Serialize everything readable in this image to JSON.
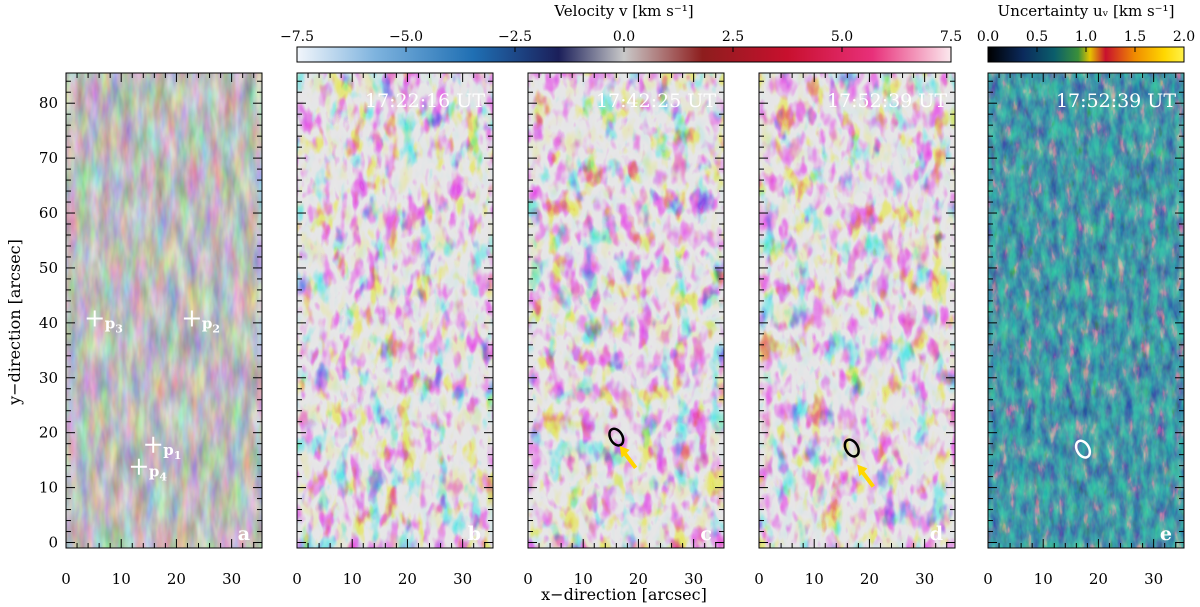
{
  "chart_data": {
    "type": "heatmap",
    "xlabel": "x−direction  [arcsec]",
    "ylabel": "y−direction  [arcsec]",
    "xlim": [
      0,
      35.5
    ],
    "ylim": [
      -1,
      85.5
    ],
    "x_ticks": [
      "0",
      "10",
      "20",
      "30"
    ],
    "x_tick_values": [
      0,
      10,
      20,
      30
    ],
    "y_ticks": [
      "0",
      "10",
      "20",
      "30",
      "40",
      "50",
      "60",
      "70",
      "80"
    ],
    "y_tick_values": [
      0,
      10,
      20,
      30,
      40,
      50,
      60,
      70,
      80
    ],
    "velocity_colorbar": {
      "title": "Velocity  v  [km s⁻¹]",
      "ticks": [
        "−7.5",
        "−5.0",
        "−2.5",
        "0.0",
        "2.5",
        "5.0",
        "7.5"
      ],
      "tick_values": [
        -7.5,
        -5.0,
        -2.5,
        0.0,
        2.5,
        5.0,
        7.5
      ],
      "range": [
        -7.5,
        7.5
      ],
      "colors": [
        "#f2f6fb",
        "#7eb3de",
        "#1f6fb3",
        "#1b1f5a",
        "#c9c9c9",
        "#8d1d1d",
        "#c8102e",
        "#e8307a",
        "#fbe9ee"
      ]
    },
    "uncertainty_colorbar": {
      "title": "Uncertainty  uᵥ  [km s⁻¹]",
      "ticks": [
        "0.0",
        "0.5",
        "1.0",
        "1.5",
        "2.0"
      ],
      "tick_values": [
        0.0,
        0.5,
        1.0,
        1.5,
        2.0
      ],
      "range": [
        0.0,
        2.0
      ],
      "colors": [
        "#000000",
        "#0b2a5c",
        "#0b5e6b",
        "#3a8f3a",
        "#e6c400",
        "#c8102e",
        "#f08c00",
        "#ffd700",
        "#fff24a"
      ]
    },
    "panels": [
      {
        "letter": "a",
        "timestamp": "",
        "kind": "intensity"
      },
      {
        "letter": "b",
        "timestamp": "17:22:16 UT",
        "kind": "velocity"
      },
      {
        "letter": "c",
        "timestamp": "17:42:25 UT",
        "kind": "velocity"
      },
      {
        "letter": "d",
        "timestamp": "17:52:39 UT",
        "kind": "velocity"
      },
      {
        "letter": "e",
        "timestamp": "17:52:39 UT",
        "kind": "uncertainty"
      }
    ],
    "points": [
      {
        "name": "p",
        "sub": "1",
        "x": 15.8,
        "y": 17.8
      },
      {
        "name": "p",
        "sub": "2",
        "x": 22.8,
        "y": 40.8
      },
      {
        "name": "p",
        "sub": "3",
        "x": 5.2,
        "y": 40.8
      },
      {
        "name": "p",
        "sub": "4",
        "x": 13.2,
        "y": 13.8
      }
    ],
    "arrows": [
      {
        "panel": "c",
        "tip_x": 16.6,
        "tip_y": 17.6,
        "color": "#ffd700"
      },
      {
        "panel": "d",
        "tip_x": 17.8,
        "tip_y": 14.2,
        "color": "#ffd700"
      }
    ],
    "contours": [
      {
        "panel": "c",
        "cx": 16.0,
        "cy": 19.2,
        "color": "#000000"
      },
      {
        "panel": "d",
        "cx": 16.8,
        "cy": 17.2,
        "color": "#000000"
      },
      {
        "panel": "e",
        "cx": 17.2,
        "cy": 17.0,
        "color": "#ffffff"
      }
    ]
  }
}
